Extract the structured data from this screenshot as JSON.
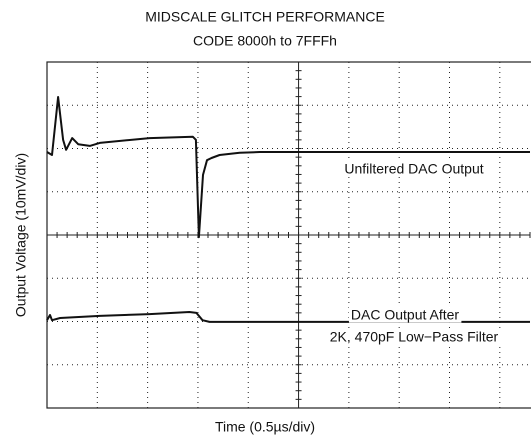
{
  "chart_data": {
    "type": "line",
    "title": "MIDSCALE GLITCH PERFORMANCE",
    "subtitle": "CODE 8000h to 7FFFh",
    "x_label": "Time (0.5µs/div)",
    "y_label": "Output Voltage (10mV/div)",
    "xlim": [
      0,
      9.6
    ],
    "ylim": [
      -4,
      4
    ],
    "xticks": [
      1,
      2,
      3,
      4,
      5,
      6,
      7,
      8,
      9
    ],
    "yticks": [
      -3,
      -2,
      -1,
      0,
      1,
      2,
      3
    ],
    "grid": true,
    "annotations": [
      "Unfiltered DAC Output",
      "DAC Output After",
      "2K, 470pF Low−Pass Filter"
    ],
    "series": [
      {
        "color": "#111111",
        "x": [
          0,
          0.1,
          0.22,
          0.32,
          0.38,
          0.5,
          0.62,
          0.85,
          1.05,
          2.04,
          2.9,
          2.96,
          3.02,
          3.1,
          3.18,
          3.27,
          3.43,
          3.83,
          4.23,
          9.6
        ],
        "values": [
          1.92,
          1.85,
          3.19,
          2.2,
          1.97,
          2.24,
          2.1,
          2.06,
          2.13,
          2.24,
          2.27,
          2.2,
          -0.05,
          1.39,
          1.73,
          1.78,
          1.85,
          1.9,
          1.92,
          1.92
        ]
      },
      {
        "color": "#111111",
        "x": [
          0,
          0.06,
          0.1,
          0.26,
          1.05,
          2.04,
          2.83,
          2.97,
          3.09,
          3.23,
          9.6
        ],
        "values": [
          -1.97,
          -1.85,
          -1.97,
          -1.92,
          -1.87,
          -1.83,
          -1.78,
          -1.8,
          -1.97,
          -2.01,
          -2.01
        ]
      }
    ]
  }
}
